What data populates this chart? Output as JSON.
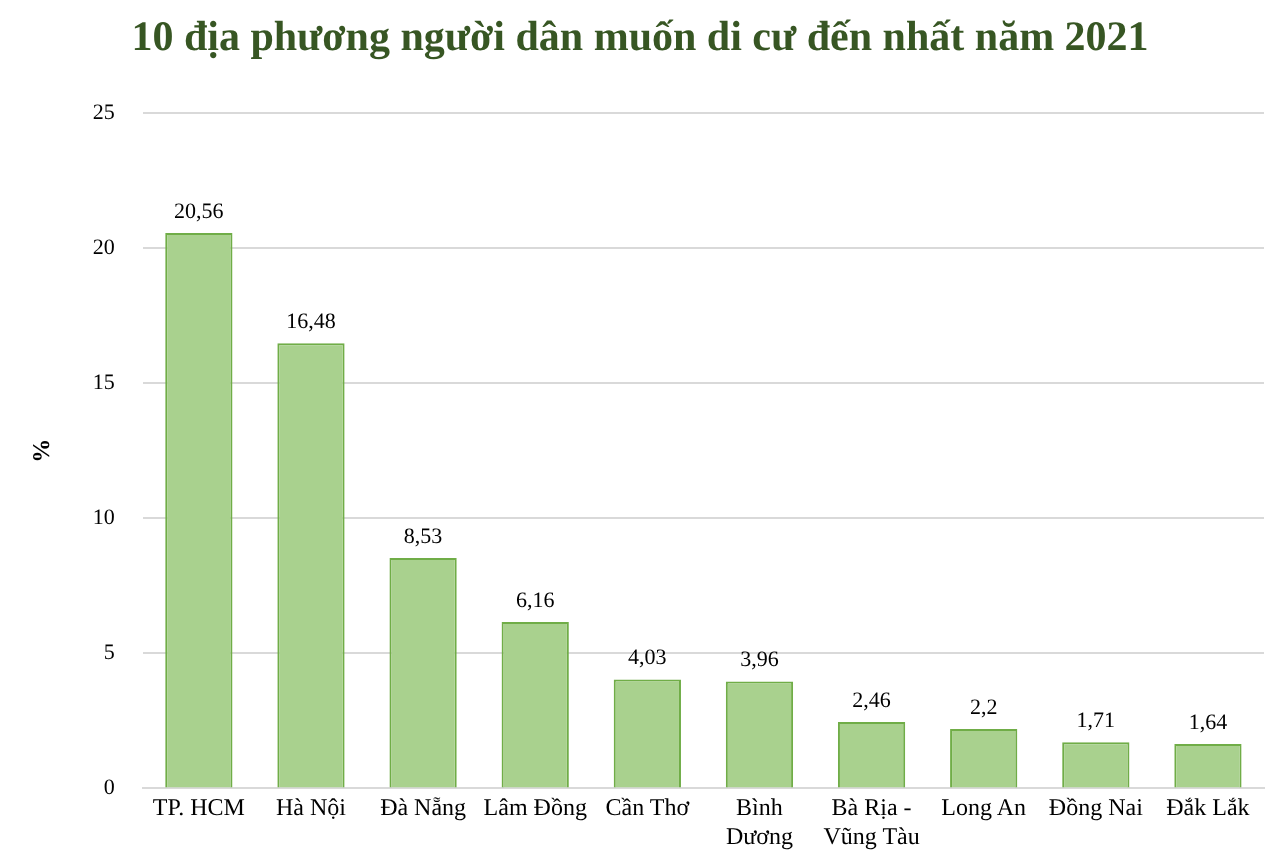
{
  "chart_data": {
    "type": "bar",
    "title": "10 địa phương người dân muốn di cư đến nhất năm 2021",
    "ylabel": "%",
    "categories": [
      "TP. HCM",
      "Hà Nội",
      "Đà Nẵng",
      "Lâm Đồng",
      "Cần Thơ",
      "Bình Dương",
      "Bà Rịa - Vũng Tàu",
      "Long An",
      "Đồng Nai",
      "Đắk Lắk"
    ],
    "values": [
      20.56,
      16.48,
      8.53,
      6.16,
      4.03,
      3.96,
      2.46,
      2.2,
      1.71,
      1.64
    ],
    "value_labels": [
      "20,56",
      "16,48",
      "8,53",
      "6,16",
      "4,03",
      "3,96",
      "2,46",
      "2,2",
      "1,71",
      "1,64"
    ],
    "color": "#a9d18e",
    "ylim": [
      0,
      25
    ],
    "yticks": [
      0,
      5,
      10,
      15,
      20,
      25
    ],
    "grid": "y",
    "legend": false
  }
}
